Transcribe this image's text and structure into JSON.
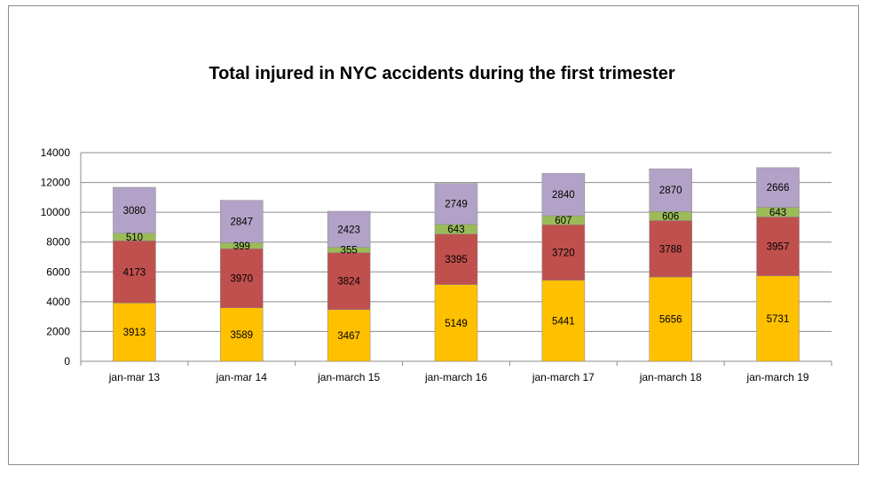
{
  "chart_data": {
    "type": "bar",
    "stacked": true,
    "title": "Total injured in NYC accidents during the first trimester",
    "xlabel": "",
    "ylabel": "",
    "ylim": [
      0,
      14000
    ],
    "yticks": [
      0,
      2000,
      4000,
      6000,
      8000,
      10000,
      12000,
      14000
    ],
    "grid": true,
    "legend": "none",
    "categories": [
      "jan-mar 13",
      "jan-mar 14",
      "jan-march 15",
      "jan-march 16",
      "jan-march 17",
      "jan-march 18",
      "jan-march 19"
    ],
    "series": [
      {
        "color": "#FFC000",
        "values": [
          3913,
          3589,
          3467,
          5149,
          5441,
          5656,
          5731
        ]
      },
      {
        "color": "#C0504D",
        "values": [
          4173,
          3970,
          3824,
          3395,
          3720,
          3788,
          3957
        ]
      },
      {
        "color": "#9BBB59",
        "values": [
          510,
          399,
          355,
          643,
          607,
          606,
          643
        ]
      },
      {
        "color": "#B3A2C7",
        "values": [
          3080,
          2847,
          2423,
          2749,
          2840,
          2870,
          2666
        ]
      }
    ]
  }
}
